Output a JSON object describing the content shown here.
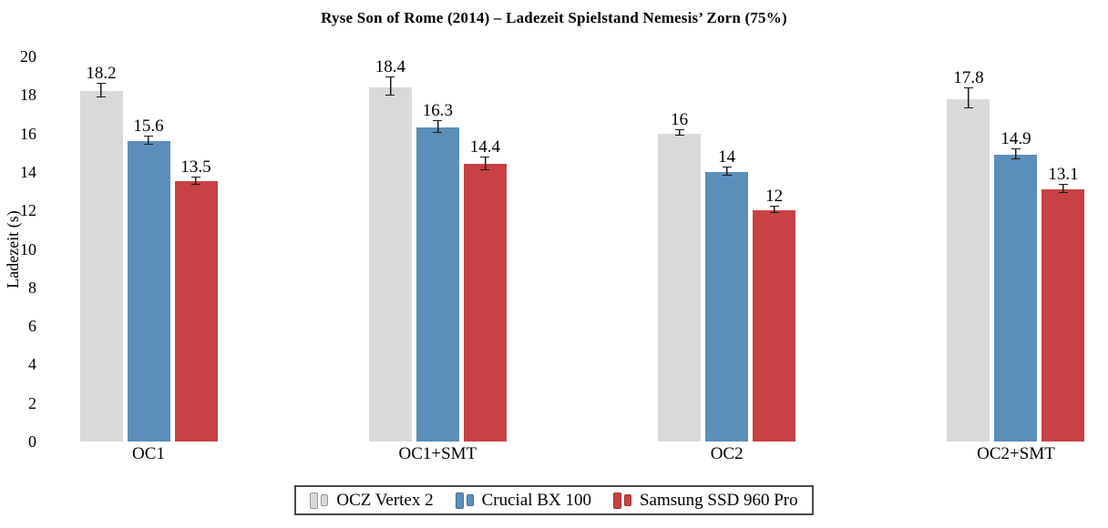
{
  "chart_data": {
    "type": "bar",
    "title": "Ryse Son of Rome (2014) – Ladezeit Spielstand Nemesis’ Zorn (75%)",
    "ylabel": "Ladezeit (s)",
    "xlabel": "",
    "ylim": [
      0,
      20
    ],
    "ytick_step": 2,
    "grid": false,
    "legend_position": "bottom",
    "value_labels": true,
    "error_bar_color": "#1a1a1a",
    "legend_border_color": "#4a4a4a",
    "categories": [
      "OC1",
      "OC1+SMT",
      "OC2",
      "OC2+SMT"
    ],
    "series": [
      {
        "name": "OCZ Vertex 2",
        "color": "#d9d9d9",
        "border_color": "#949494",
        "values": [
          18.2,
          18.4,
          16,
          17.8
        ],
        "errors": [
          0.35,
          0.45,
          0.12,
          0.5
        ]
      },
      {
        "name": "Crucial BX 100",
        "color": "#5b8fba",
        "border_color": "#3c6f99",
        "values": [
          15.6,
          16.3,
          14,
          14.9
        ],
        "errors": [
          0.2,
          0.28,
          0.18,
          0.22
        ]
      },
      {
        "name": "Samsung SSD 960 Pro",
        "color": "#c94142",
        "border_color": "#9e3132",
        "values": [
          13.5,
          14.4,
          12,
          13.1
        ],
        "errors": [
          0.15,
          0.3,
          0.15,
          0.18
        ]
      }
    ]
  }
}
